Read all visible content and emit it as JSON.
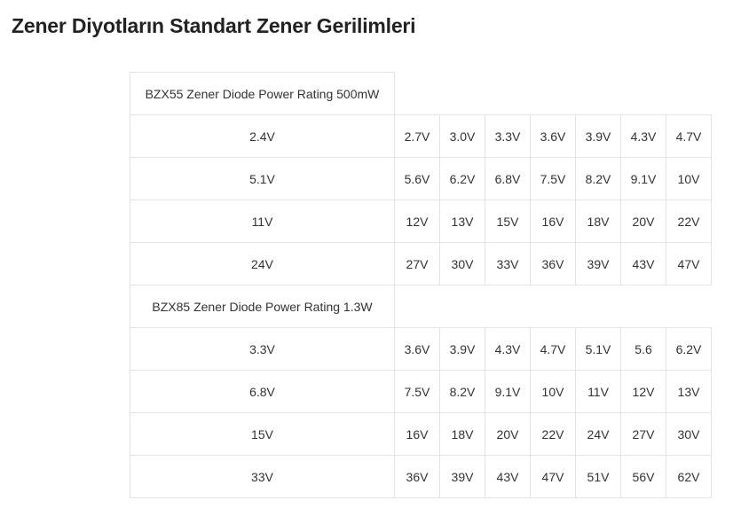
{
  "page": {
    "title": "Zener Diyotların Standart Zener Gerilimleri"
  },
  "table": {
    "sections": [
      {
        "header": "BZX55 Zener Diode Power Rating 500mW",
        "rows": [
          [
            "2.4V",
            "2.7V",
            "3.0V",
            "3.3V",
            "3.6V",
            "3.9V",
            "4.3V",
            "4.7V"
          ],
          [
            "5.1V",
            "5.6V",
            "6.2V",
            "6.8V",
            "7.5V",
            "8.2V",
            "9.1V",
            "10V"
          ],
          [
            "11V",
            "12V",
            "13V",
            "15V",
            "16V",
            "18V",
            "20V",
            "22V"
          ],
          [
            "24V",
            "27V",
            "30V",
            "33V",
            "36V",
            "39V",
            "43V",
            "47V"
          ]
        ]
      },
      {
        "header": "BZX85 Zener Diode Power Rating 1.3W",
        "rows": [
          [
            "3.3V",
            "3.6V",
            "3.9V",
            "4.3V",
            "4.7V",
            "5.1V",
            "5.6",
            "6.2V"
          ],
          [
            "6.8V",
            "7.5V",
            "8.2V",
            "9.1V",
            "10V",
            "11V",
            "12V",
            "13V"
          ],
          [
            "15V",
            "16V",
            "18V",
            "20V",
            "22V",
            "24V",
            "27V",
            "30V"
          ],
          [
            "33V",
            "36V",
            "39V",
            "43V",
            "47V",
            "51V",
            "56V",
            "62V"
          ]
        ]
      }
    ]
  }
}
